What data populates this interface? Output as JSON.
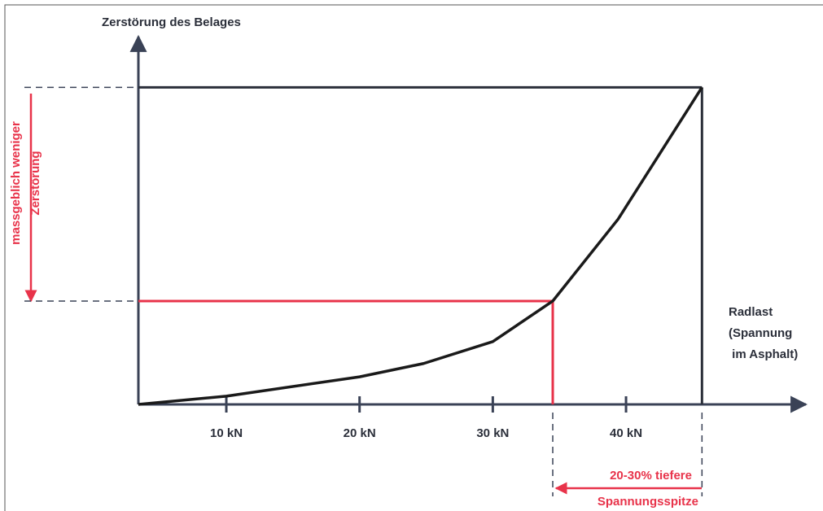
{
  "chart_data": {
    "type": "line",
    "y_label": "Zerstörung des Belages",
    "x_label": [
      "Radlast",
      "(Spannung",
      " im Asphalt)"
    ],
    "x": [
      3.4,
      10,
      20,
      24.8,
      30,
      34.5,
      39.4,
      45.7
    ],
    "series": [
      {
        "name": null,
        "color": "#1a1a1a",
        "values": [
          0,
          2.6,
          8.7,
          12.9,
          19.8,
          32.6,
          58.4,
          100
        ]
      }
    ],
    "xlim": [
      3.4,
      53.5
    ],
    "ylim": [
      0,
      116
    ],
    "xticks": [
      {
        "value": 10,
        "label": "10 kN"
      },
      {
        "value": 20,
        "label": "20 kN"
      },
      {
        "value": 30,
        "label": "30 kN"
      },
      {
        "value": 40,
        "label": "40 kN"
      }
    ],
    "reference_points": [
      {
        "x": 34.5,
        "y": 32.6,
        "color": "#e8334a"
      },
      {
        "x": 45.7,
        "y": 100,
        "color": "#2b2f3a"
      }
    ],
    "annotations": {
      "left": [
        "massgeblich weniger",
        "Zerstörung"
      ],
      "bottom": [
        "20-30% tiefere",
        "Spannungsspitze"
      ]
    }
  }
}
